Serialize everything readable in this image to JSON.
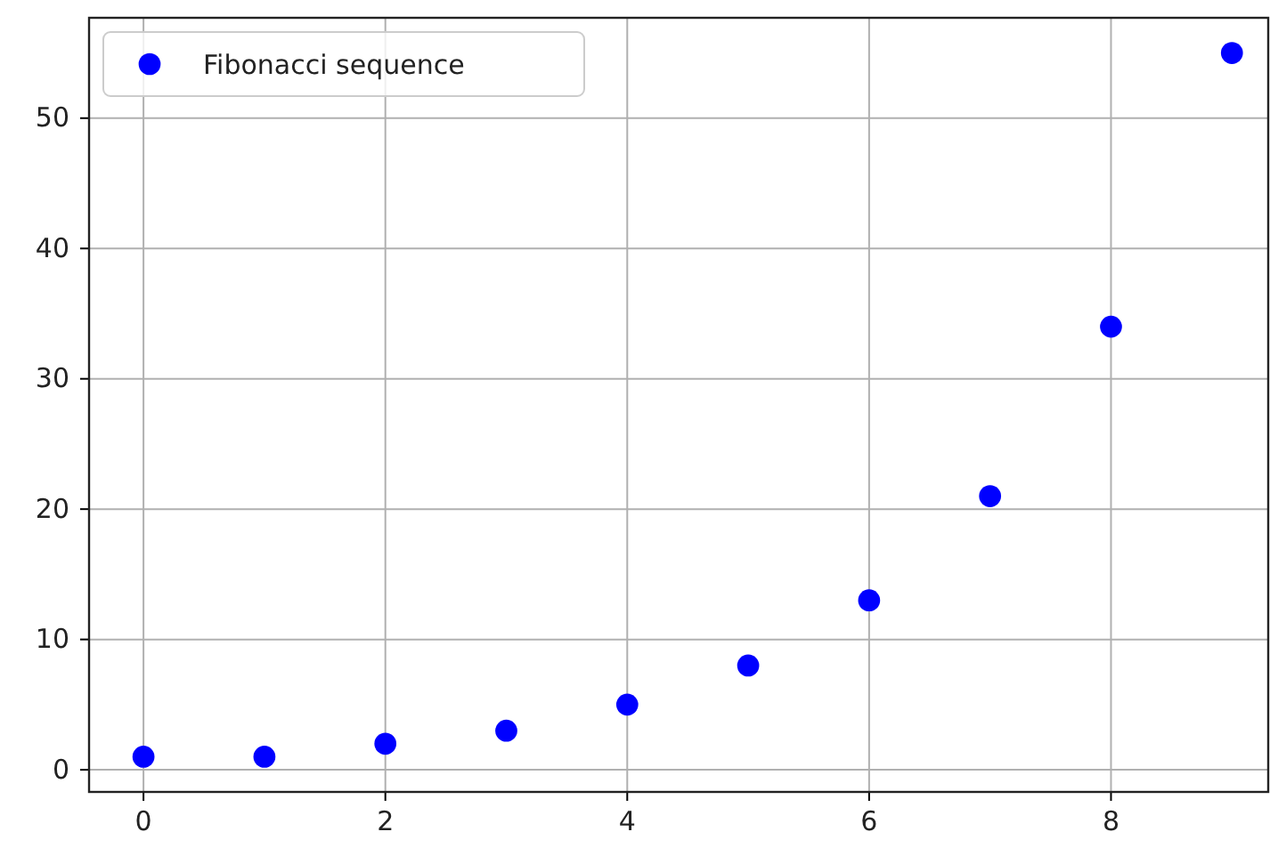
{
  "chart_data": {
    "type": "scatter",
    "x": [
      0,
      1,
      2,
      3,
      4,
      5,
      6,
      7,
      8,
      9
    ],
    "series": [
      {
        "name": "Fibonacci sequence",
        "color": "#0000ff",
        "values": [
          1,
          1,
          2,
          3,
          5,
          8,
          13,
          21,
          34,
          55
        ]
      }
    ],
    "xlim": [
      -0.45,
      9.3
    ],
    "ylim": [
      -1.7,
      57.7
    ],
    "xticks": [
      0,
      2,
      4,
      6,
      8
    ],
    "yticks": [
      0,
      10,
      20,
      30,
      40,
      50
    ],
    "grid": true,
    "legend": "top left",
    "marker": "circle"
  }
}
